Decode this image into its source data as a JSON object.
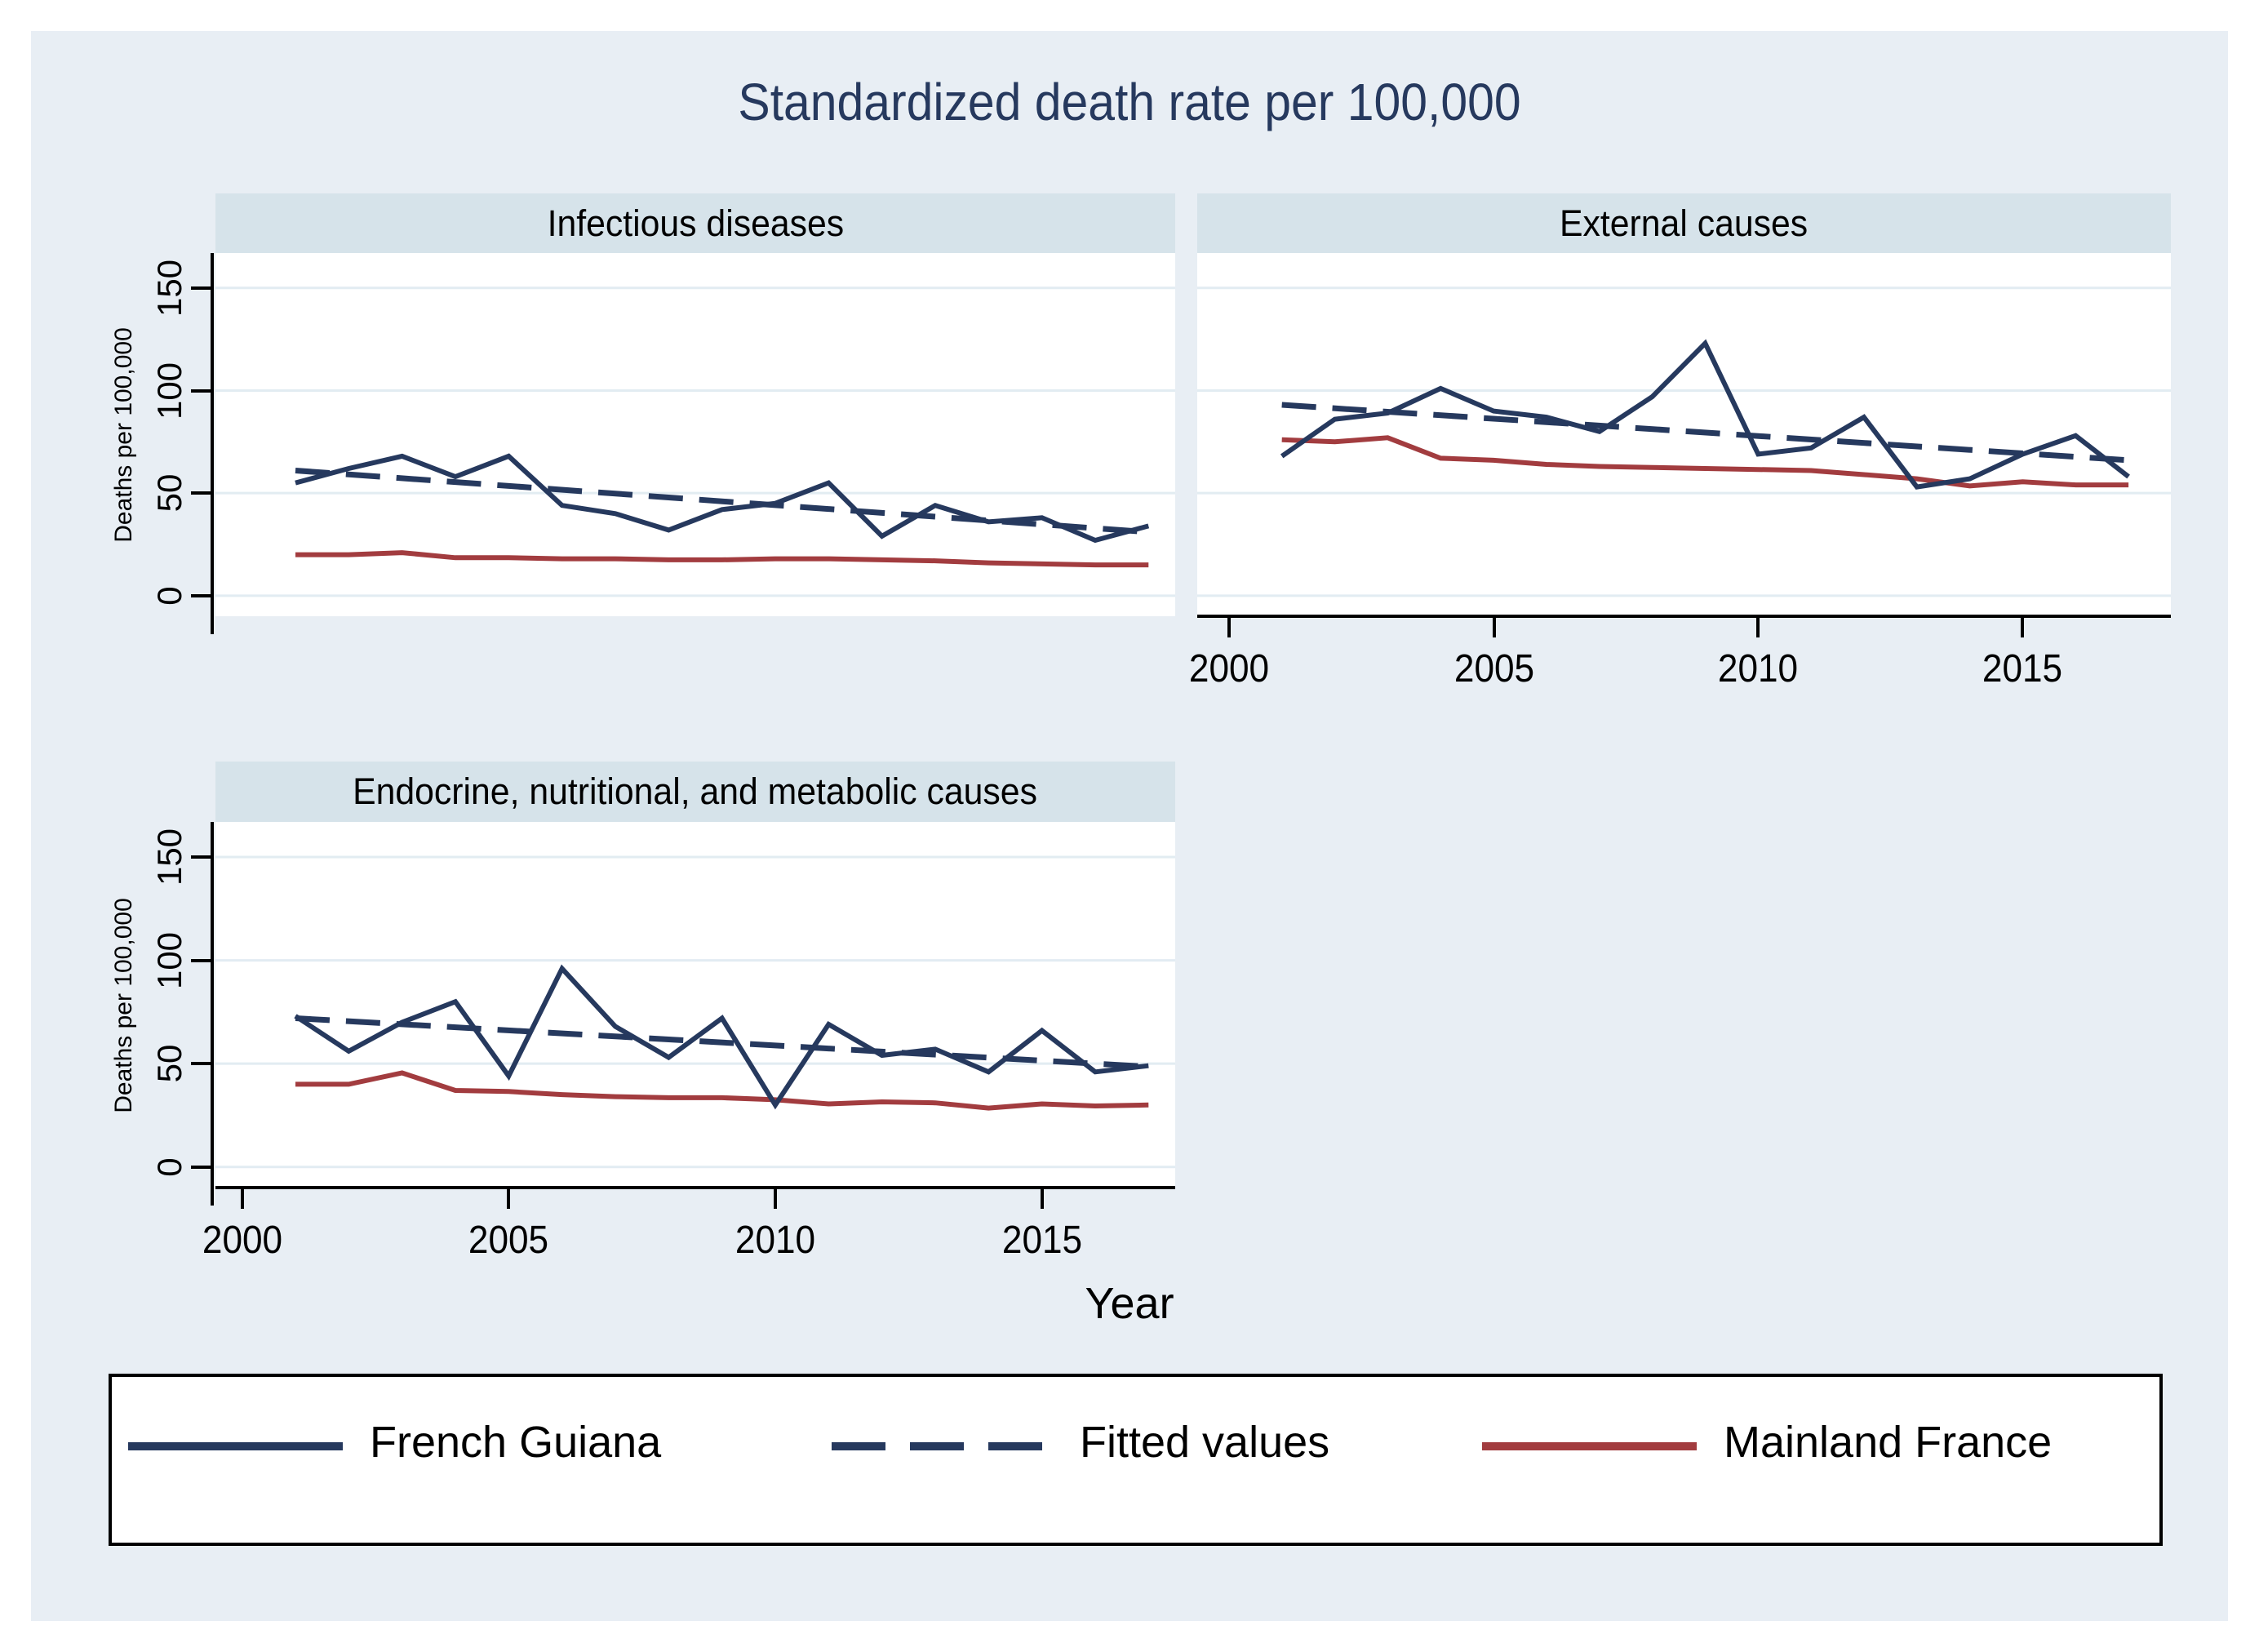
{
  "title": "Standardized death rate per 100,000",
  "colors": {
    "figure_background": "#e8eef4",
    "panel_band": "#d6e3ea",
    "plot_background": "#ffffff",
    "gridline": "#e2ecf2",
    "navy": "#26395e",
    "red": "#a23c3f",
    "title_text": "#26395e"
  },
  "axes": {
    "ylabel": "Deaths per 100,000",
    "xlabel": "Year",
    "yticks": [
      "150",
      "100",
      "50",
      "0"
    ],
    "xticks": [
      "2000",
      "2005",
      "2010",
      "2015"
    ]
  },
  "legend": {
    "entries": [
      "French Guiana",
      "Fitted values",
      "Mainland France"
    ]
  },
  "chart_data": [
    {
      "type": "line",
      "title": "Infectious diseases",
      "xlabel": "Year",
      "ylabel": "Deaths per 100,000",
      "ylim": [
        0,
        150
      ],
      "xlim": [
        2000,
        2017
      ],
      "grid": true,
      "legend_position": "bottom",
      "x": [
        2001,
        2002,
        2003,
        2004,
        2005,
        2006,
        2007,
        2008,
        2009,
        2010,
        2011,
        2012,
        2013,
        2014,
        2015,
        2016,
        2017
      ],
      "series": [
        {
          "name": "French Guiana",
          "style": "solid",
          "color": "#26395e",
          "values": [
            55,
            62,
            68,
            58,
            68,
            44,
            40,
            32,
            42,
            45,
            55,
            29,
            44,
            36,
            38,
            27,
            34
          ]
        },
        {
          "name": "Fitted values",
          "style": "dashed",
          "color": "#26395e",
          "x": [
            2001,
            2017
          ],
          "values": [
            61,
            31
          ]
        },
        {
          "name": "Mainland France",
          "style": "solid",
          "color": "#a23c3f",
          "values": [
            20,
            20,
            21,
            18.5,
            18.5,
            18,
            18,
            17.5,
            17.5,
            18,
            18,
            17.5,
            17,
            16,
            15.5,
            15,
            15
          ]
        }
      ]
    },
    {
      "type": "line",
      "title": "External causes",
      "xlabel": "Year",
      "ylabel": "Deaths per 100,000",
      "ylim": [
        0,
        150
      ],
      "xlim": [
        2000,
        2017
      ],
      "grid": true,
      "legend_position": "bottom",
      "x": [
        2001,
        2002,
        2003,
        2004,
        2005,
        2006,
        2007,
        2008,
        2009,
        2010,
        2011,
        2012,
        2013,
        2014,
        2015,
        2016,
        2017
      ],
      "series": [
        {
          "name": "French Guiana",
          "style": "solid",
          "color": "#26395e",
          "values": [
            68,
            86,
            89,
            101,
            90,
            87,
            80,
            97,
            123,
            69,
            72,
            87,
            53,
            57,
            69,
            78,
            58
          ]
        },
        {
          "name": "Fitted values",
          "style": "dashed",
          "color": "#26395e",
          "x": [
            2001,
            2017
          ],
          "values": [
            93,
            66
          ]
        },
        {
          "name": "Mainland France",
          "style": "solid",
          "color": "#a23c3f",
          "values": [
            76,
            75,
            77,
            67,
            66,
            64,
            63,
            62.5,
            62,
            61.5,
            61,
            59,
            57,
            53.5,
            55.5,
            54,
            54
          ]
        }
      ]
    },
    {
      "type": "line",
      "title": "Endocrine, nutritional, and metabolic causes",
      "xlabel": "Year",
      "ylabel": "Deaths per 100,000",
      "ylim": [
        0,
        150
      ],
      "xlim": [
        2000,
        2017
      ],
      "grid": true,
      "legend_position": "bottom",
      "x": [
        2001,
        2002,
        2003,
        2004,
        2005,
        2006,
        2007,
        2008,
        2009,
        2010,
        2011,
        2012,
        2013,
        2014,
        2015,
        2016,
        2017
      ],
      "series": [
        {
          "name": "French Guiana",
          "style": "solid",
          "color": "#26395e",
          "values": [
            73,
            56,
            70,
            80,
            44,
            96,
            68,
            53,
            72,
            30,
            69,
            54,
            57,
            46,
            66,
            46,
            49
          ]
        },
        {
          "name": "Fitted values",
          "style": "dashed",
          "color": "#26395e",
          "x": [
            2001,
            2017
          ],
          "values": [
            72,
            48.5
          ]
        },
        {
          "name": "Mainland France",
          "style": "solid",
          "color": "#a23c3f",
          "values": [
            40,
            40,
            45.5,
            37,
            36.5,
            35,
            34,
            33.5,
            33.5,
            32.5,
            30.5,
            31.5,
            31,
            28.5,
            30.5,
            29.5,
            30
          ]
        }
      ]
    }
  ]
}
